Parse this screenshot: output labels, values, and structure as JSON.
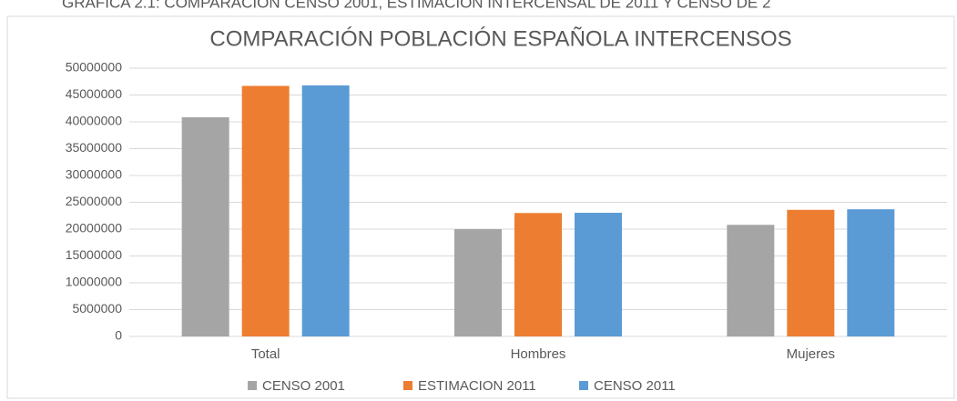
{
  "caption": "GRÁFICA 2.1: COMPARACIÓN CENSO 2001, ESTIMACIÓN INTERCENSAL DE 2011 Y CENSO DE 2",
  "chart_data": {
    "type": "bar",
    "title": "COMPARACIÓN POBLACIÓN ESPAÑOLA INTERCENSOS",
    "categories": [
      "Total",
      "Hombres",
      "Mujeres"
    ],
    "series": [
      {
        "name": "CENSO 2001",
        "color": "#a5a5a5",
        "values": [
          40850000,
          20000000,
          20800000
        ]
      },
      {
        "name": "ESTIMACION 2011",
        "color": "#ed7d31",
        "values": [
          46700000,
          23000000,
          23600000
        ]
      },
      {
        "name": "CENSO 2011",
        "color": "#5b9bd5",
        "values": [
          46800000,
          23050000,
          23700000
        ]
      }
    ],
    "ylim": [
      0,
      50000000
    ],
    "yticks": [
      0,
      5000000,
      10000000,
      15000000,
      20000000,
      25000000,
      30000000,
      35000000,
      40000000,
      45000000,
      50000000
    ],
    "grid": true,
    "legend": "bottom"
  }
}
